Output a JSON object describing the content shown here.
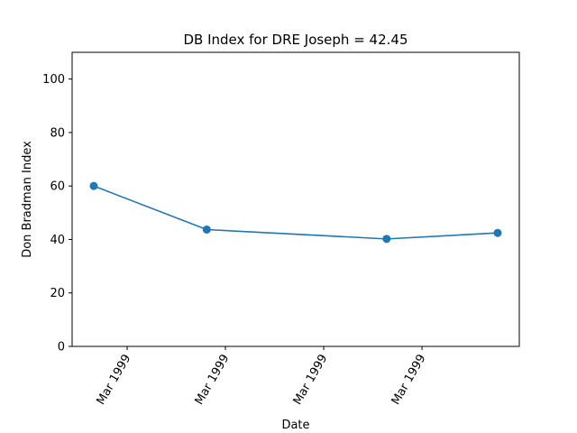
{
  "chart_data": {
    "type": "line",
    "title": "DB Index for DRE Joseph = 42.45",
    "xlabel": "Date",
    "ylabel": "Don Bradman Index",
    "ylim": [
      0,
      110
    ],
    "yticks": [
      0,
      20,
      40,
      60,
      80,
      100
    ],
    "xlim": [
      0,
      4.55
    ],
    "xticks": [
      {
        "pos": 0.56,
        "label": "Mar 1999"
      },
      {
        "pos": 1.56,
        "label": "Mar 1999"
      },
      {
        "pos": 2.56,
        "label": "Mar 1999"
      },
      {
        "pos": 3.56,
        "label": "Mar 1999"
      }
    ],
    "series": [
      {
        "x": [
          0.22,
          1.37,
          3.2,
          4.33
        ],
        "y": [
          60.0,
          43.7,
          40.2,
          42.45
        ],
        "color": "#1f77b4"
      }
    ],
    "grid": false
  }
}
